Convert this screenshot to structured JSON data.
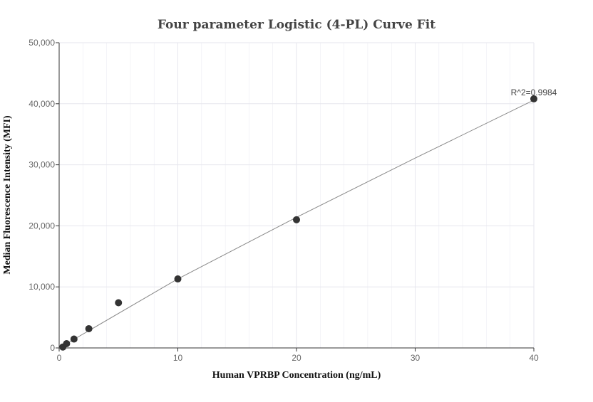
{
  "chart_data": {
    "type": "scatter",
    "title": "Four parameter Logistic (4-PL) Curve Fit",
    "xlabel": "Human VPRBP Concentration (ng/mL)",
    "ylabel": "Median Fluorescence Intensity (MFI)",
    "xlim": [
      0,
      40
    ],
    "ylim": [
      0,
      50000
    ],
    "xticks": [
      0,
      10,
      20,
      30,
      40
    ],
    "xtick_labels": [
      "0",
      "10",
      "20",
      "30",
      "40"
    ],
    "yticks": [
      0,
      10000,
      20000,
      30000,
      40000,
      50000
    ],
    "ytick_labels": [
      "0",
      "10,000",
      "20,000",
      "30,000",
      "40,000",
      "50,000"
    ],
    "grid": true,
    "legend": "none",
    "series": [
      {
        "points": [
          {
            "x": 0.3125,
            "y": 150
          },
          {
            "x": 0.625,
            "y": 700
          },
          {
            "x": 1.25,
            "y": 1450
          },
          {
            "x": 2.5,
            "y": 3150
          },
          {
            "x": 5,
            "y": 7400
          },
          {
            "x": 10,
            "y": 11300
          },
          {
            "x": 20,
            "y": 21000
          },
          {
            "x": 40,
            "y": 40800
          }
        ]
      }
    ],
    "fit_curve": {
      "points": [
        {
          "x": 0,
          "y": 0
        },
        {
          "x": 10,
          "y": 11300
        },
        {
          "x": 20,
          "y": 21400
        },
        {
          "x": 30,
          "y": 31100
        },
        {
          "x": 40,
          "y": 40600
        }
      ]
    },
    "annotation": "R^2=0.9984",
    "colors": {
      "points": "#333333",
      "curve": "#888888",
      "grid": "#e6e6ee",
      "axis": "#333333"
    }
  }
}
